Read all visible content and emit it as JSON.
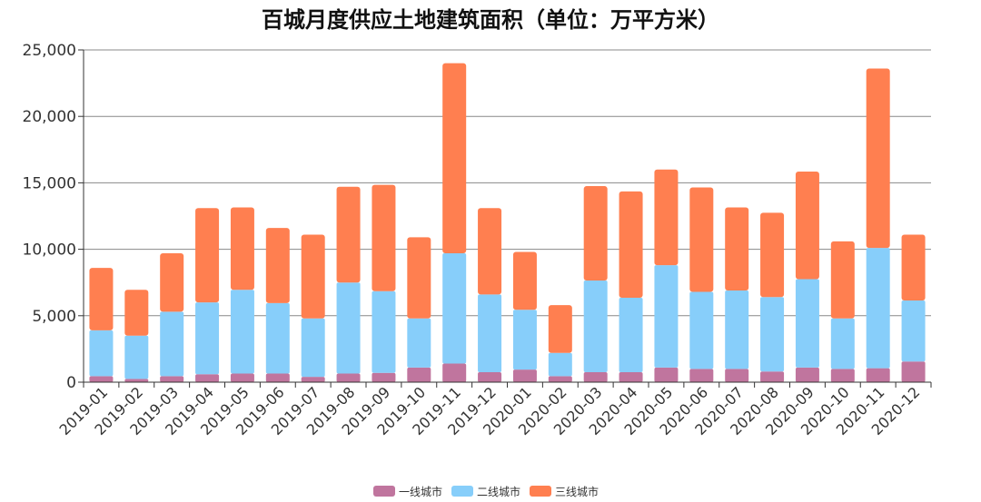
{
  "chart_data": {
    "type": "bar",
    "stacked": true,
    "title": "百城月度供应土地建筑面积（单位：万平方米）",
    "xlabel": "",
    "ylabel": "",
    "ylim": [
      0,
      25000
    ],
    "y_ticks": [
      "0",
      "5,000",
      "10,000",
      "15,000",
      "20,000",
      "25,000"
    ],
    "grid": true,
    "legend_position": "bottom",
    "categories": [
      "2019-01",
      "2019-02",
      "2019-03",
      "2019-04",
      "2019-05",
      "2019-06",
      "2019-07",
      "2019-08",
      "2019-09",
      "2019-10",
      "2019-11",
      "2019-12",
      "2020-01",
      "2020-02",
      "2020-03",
      "2020-04",
      "2020-05",
      "2020-06",
      "2020-07",
      "2020-08",
      "2020-09",
      "2020-10",
      "2020-11",
      "2020-12"
    ],
    "series": [
      {
        "name": "一线城市",
        "color": "#c0759e",
        "values": [
          450,
          250,
          450,
          600,
          650,
          650,
          400,
          650,
          700,
          1100,
          1400,
          750,
          950,
          450,
          750,
          750,
          1100,
          1000,
          1000,
          800,
          1100,
          1000,
          1050,
          1550
        ]
      },
      {
        "name": "二线城市",
        "color": "#87cefa",
        "values": [
          3450,
          3250,
          4850,
          5400,
          6300,
          5300,
          4400,
          6850,
          6150,
          3700,
          8300,
          5850,
          4500,
          1750,
          6900,
          5600,
          7700,
          5800,
          5900,
          5600,
          6650,
          3800,
          9050,
          4600
        ]
      },
      {
        "name": "三线城市",
        "color": "#ff7f50",
        "values": [
          4700,
          3450,
          4400,
          7100,
          6200,
          5650,
          6300,
          7200,
          8000,
          6100,
          14300,
          6500,
          4350,
          3600,
          7100,
          8000,
          7200,
          7850,
          6250,
          6350,
          8100,
          5800,
          13500,
          4950
        ]
      }
    ]
  }
}
